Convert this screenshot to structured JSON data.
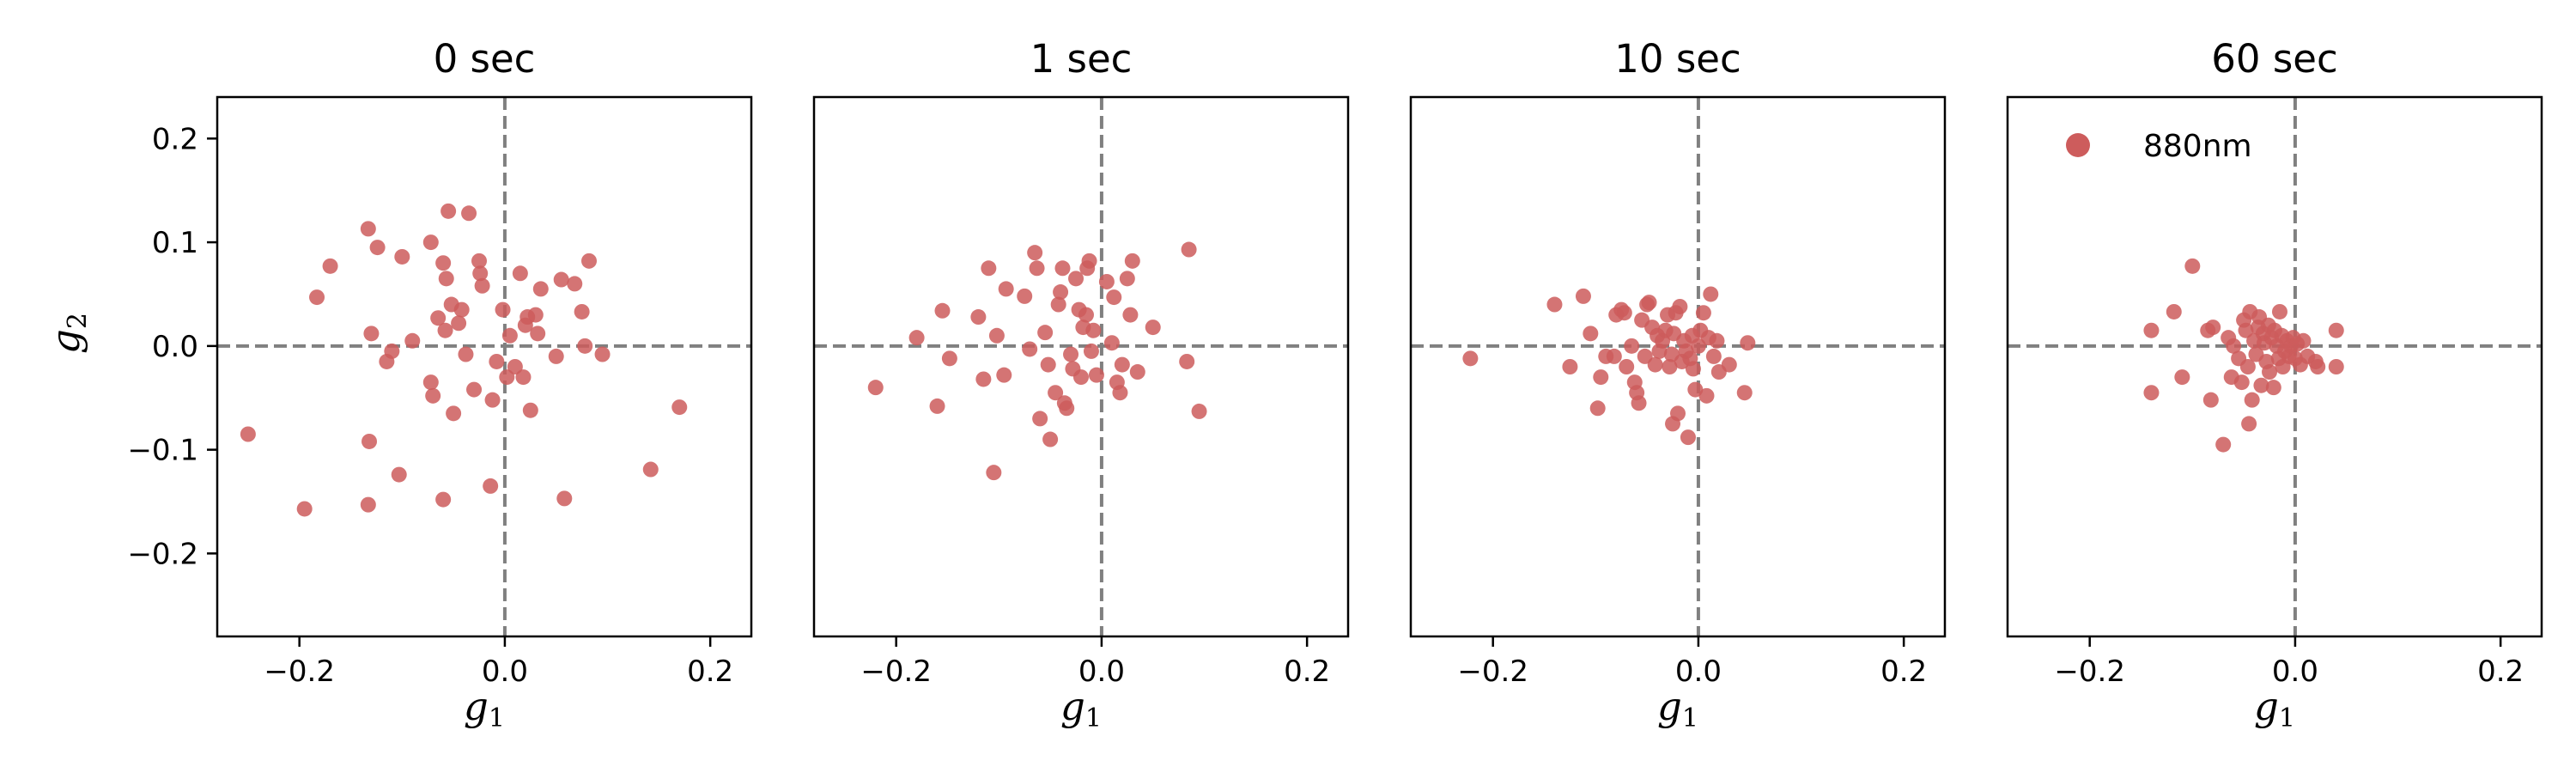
{
  "chart_data": {
    "type": "scatter",
    "xlim": [
      -0.28,
      0.24
    ],
    "ylim": [
      -0.28,
      0.24
    ],
    "xticks": [
      -0.2,
      0.0,
      0.2
    ],
    "xtick_labels": [
      "−0.2",
      "0.0",
      "0.2"
    ],
    "yticks": [
      0.2,
      0.1,
      0.0,
      -0.1,
      -0.2
    ],
    "ytick_labels": [
      "0.2",
      "0.1",
      "0.0",
      "−0.1",
      "−0.2"
    ],
    "xlabel": "g",
    "xlabel_sub": "1",
    "ylabel": "g",
    "ylabel_sub": "2",
    "reference_lines": {
      "x": 0.0,
      "y": 0.0,
      "style": "dashed",
      "color": "#808080"
    },
    "marker_color": "#cd5c5c",
    "grid": false,
    "legend": {
      "label": "880nm",
      "panel_index": 3,
      "placement": "top-left"
    },
    "panels": [
      {
        "title": "0 sec",
        "points": [
          [
            -0.25,
            -0.085
          ],
          [
            -0.195,
            -0.157
          ],
          [
            -0.183,
            0.047
          ],
          [
            -0.17,
            0.077
          ],
          [
            -0.133,
            0.113
          ],
          [
            -0.132,
            -0.092
          ],
          [
            -0.133,
            -0.153
          ],
          [
            -0.13,
            0.012
          ],
          [
            -0.124,
            0.095
          ],
          [
            -0.115,
            -0.015
          ],
          [
            -0.11,
            -0.005
          ],
          [
            -0.103,
            -0.124
          ],
          [
            -0.1,
            0.086
          ],
          [
            -0.09,
            0.005
          ],
          [
            -0.072,
            0.1
          ],
          [
            -0.072,
            -0.035
          ],
          [
            -0.07,
            -0.048
          ],
          [
            -0.065,
            0.027
          ],
          [
            -0.06,
            -0.148
          ],
          [
            -0.06,
            0.08
          ],
          [
            -0.058,
            0.015
          ],
          [
            -0.057,
            0.065
          ],
          [
            -0.055,
            0.13
          ],
          [
            -0.052,
            0.04
          ],
          [
            -0.05,
            -0.065
          ],
          [
            -0.045,
            0.022
          ],
          [
            -0.042,
            0.035
          ],
          [
            -0.038,
            -0.008
          ],
          [
            -0.035,
            0.128
          ],
          [
            -0.03,
            -0.042
          ],
          [
            -0.025,
            0.082
          ],
          [
            -0.024,
            0.07
          ],
          [
            -0.022,
            0.058
          ],
          [
            -0.014,
            -0.135
          ],
          [
            -0.012,
            -0.052
          ],
          [
            -0.008,
            -0.015
          ],
          [
            -0.002,
            0.035
          ],
          [
            0.002,
            -0.03
          ],
          [
            0.005,
            0.01
          ],
          [
            0.01,
            -0.02
          ],
          [
            0.015,
            0.07
          ],
          [
            0.018,
            -0.03
          ],
          [
            0.02,
            0.02
          ],
          [
            0.022,
            0.028
          ],
          [
            0.025,
            -0.062
          ],
          [
            0.03,
            0.03
          ],
          [
            0.032,
            0.012
          ],
          [
            0.035,
            0.055
          ],
          [
            0.05,
            -0.01
          ],
          [
            0.055,
            0.064
          ],
          [
            0.058,
            -0.147
          ],
          [
            0.068,
            0.06
          ],
          [
            0.075,
            0.033
          ],
          [
            0.078,
            0.0
          ],
          [
            0.082,
            0.082
          ],
          [
            0.095,
            -0.008
          ],
          [
            0.142,
            -0.119
          ],
          [
            0.17,
            -0.059
          ]
        ]
      },
      {
        "title": "1 sec",
        "points": [
          [
            -0.22,
            -0.04
          ],
          [
            -0.18,
            0.008
          ],
          [
            -0.16,
            -0.058
          ],
          [
            -0.155,
            0.034
          ],
          [
            -0.148,
            -0.012
          ],
          [
            -0.12,
            0.028
          ],
          [
            -0.115,
            -0.032
          ],
          [
            -0.11,
            0.075
          ],
          [
            -0.105,
            -0.122
          ],
          [
            -0.102,
            0.01
          ],
          [
            -0.095,
            -0.028
          ],
          [
            -0.093,
            0.055
          ],
          [
            -0.075,
            0.048
          ],
          [
            -0.07,
            -0.003
          ],
          [
            -0.065,
            0.09
          ],
          [
            -0.063,
            0.075
          ],
          [
            -0.06,
            -0.07
          ],
          [
            -0.055,
            0.013
          ],
          [
            -0.052,
            -0.018
          ],
          [
            -0.05,
            -0.09
          ],
          [
            -0.045,
            -0.045
          ],
          [
            -0.042,
            0.04
          ],
          [
            -0.04,
            0.052
          ],
          [
            -0.038,
            0.075
          ],
          [
            -0.036,
            -0.055
          ],
          [
            -0.034,
            -0.06
          ],
          [
            -0.03,
            -0.008
          ],
          [
            -0.028,
            -0.022
          ],
          [
            -0.025,
            0.065
          ],
          [
            -0.022,
            0.035
          ],
          [
            -0.02,
            -0.03
          ],
          [
            -0.018,
            0.018
          ],
          [
            -0.015,
            0.03
          ],
          [
            -0.014,
            0.075
          ],
          [
            -0.012,
            0.082
          ],
          [
            -0.01,
            -0.005
          ],
          [
            -0.008,
            0.015
          ],
          [
            -0.005,
            -0.028
          ],
          [
            0.005,
            0.062
          ],
          [
            0.01,
            0.003
          ],
          [
            0.012,
            0.047
          ],
          [
            0.015,
            -0.035
          ],
          [
            0.018,
            -0.045
          ],
          [
            0.02,
            -0.018
          ],
          [
            0.025,
            0.065
          ],
          [
            0.028,
            0.03
          ],
          [
            0.03,
            0.082
          ],
          [
            0.035,
            -0.025
          ],
          [
            0.05,
            0.018
          ],
          [
            0.083,
            -0.015
          ],
          [
            0.085,
            0.093
          ],
          [
            0.095,
            -0.063
          ]
        ]
      },
      {
        "title": "10 sec",
        "points": [
          [
            -0.222,
            -0.012
          ],
          [
            -0.14,
            0.04
          ],
          [
            -0.125,
            -0.02
          ],
          [
            -0.112,
            0.048
          ],
          [
            -0.105,
            0.012
          ],
          [
            -0.098,
            -0.06
          ],
          [
            -0.095,
            -0.03
          ],
          [
            -0.09,
            -0.01
          ],
          [
            -0.082,
            -0.01
          ],
          [
            -0.08,
            0.03
          ],
          [
            -0.075,
            0.035
          ],
          [
            -0.072,
            0.032
          ],
          [
            -0.07,
            -0.02
          ],
          [
            -0.065,
            0.0
          ],
          [
            -0.062,
            -0.035
          ],
          [
            -0.06,
            -0.045
          ],
          [
            -0.058,
            -0.055
          ],
          [
            -0.055,
            0.025
          ],
          [
            -0.052,
            -0.01
          ],
          [
            -0.05,
            0.04
          ],
          [
            -0.048,
            0.042
          ],
          [
            -0.045,
            0.018
          ],
          [
            -0.042,
            -0.018
          ],
          [
            -0.04,
            0.01
          ],
          [
            -0.038,
            -0.005
          ],
          [
            -0.035,
            0.005
          ],
          [
            -0.032,
            0.015
          ],
          [
            -0.03,
            0.03
          ],
          [
            -0.028,
            -0.02
          ],
          [
            -0.026,
            -0.008
          ],
          [
            -0.025,
            -0.075
          ],
          [
            -0.024,
            0.012
          ],
          [
            -0.022,
            0.032
          ],
          [
            -0.02,
            -0.065
          ],
          [
            -0.018,
            0.038
          ],
          [
            -0.016,
            -0.015
          ],
          [
            -0.014,
            0.005
          ],
          [
            -0.012,
            -0.005
          ],
          [
            -0.01,
            -0.088
          ],
          [
            -0.008,
            -0.012
          ],
          [
            -0.006,
            0.01
          ],
          [
            -0.005,
            -0.022
          ],
          [
            -0.003,
            -0.042
          ],
          [
            0.0,
            0.0
          ],
          [
            0.002,
            0.015
          ],
          [
            0.005,
            0.032
          ],
          [
            0.008,
            -0.048
          ],
          [
            0.01,
            0.008
          ],
          [
            0.012,
            0.05
          ],
          [
            0.015,
            -0.01
          ],
          [
            0.018,
            0.005
          ],
          [
            0.02,
            -0.025
          ],
          [
            0.03,
            -0.018
          ],
          [
            0.045,
            -0.045
          ],
          [
            0.048,
            0.003
          ]
        ]
      },
      {
        "title": "60 sec",
        "points": [
          [
            -0.14,
            -0.045
          ],
          [
            -0.14,
            0.015
          ],
          [
            -0.118,
            0.033
          ],
          [
            -0.11,
            -0.03
          ],
          [
            -0.1,
            0.077
          ],
          [
            -0.085,
            0.015
          ],
          [
            -0.082,
            -0.052
          ],
          [
            -0.08,
            0.018
          ],
          [
            -0.07,
            -0.095
          ],
          [
            -0.065,
            0.008
          ],
          [
            -0.062,
            -0.03
          ],
          [
            -0.06,
            0.0
          ],
          [
            -0.055,
            -0.012
          ],
          [
            -0.052,
            -0.035
          ],
          [
            -0.05,
            0.025
          ],
          [
            -0.048,
            0.015
          ],
          [
            -0.046,
            -0.02
          ],
          [
            -0.045,
            -0.075
          ],
          [
            -0.044,
            0.033
          ],
          [
            -0.042,
            -0.052
          ],
          [
            -0.04,
            0.005
          ],
          [
            -0.038,
            -0.008
          ],
          [
            -0.036,
            0.018
          ],
          [
            -0.035,
            0.028
          ],
          [
            -0.033,
            -0.038
          ],
          [
            -0.031,
            0.012
          ],
          [
            -0.03,
            0.003
          ],
          [
            -0.028,
            -0.015
          ],
          [
            -0.026,
            0.02
          ],
          [
            -0.025,
            -0.025
          ],
          [
            -0.023,
            0.008
          ],
          [
            -0.021,
            -0.04
          ],
          [
            -0.02,
            0.015
          ],
          [
            -0.018,
            0.0
          ],
          [
            -0.016,
            -0.012
          ],
          [
            -0.015,
            0.033
          ],
          [
            -0.013,
            0.01
          ],
          [
            -0.012,
            -0.02
          ],
          [
            -0.01,
            -0.005
          ],
          [
            -0.008,
            0.005
          ],
          [
            -0.006,
            -0.01
          ],
          [
            -0.004,
            0.0
          ],
          [
            -0.002,
            0.008
          ],
          [
            0.0,
            -0.012
          ],
          [
            0.002,
            0.002
          ],
          [
            0.005,
            -0.018
          ],
          [
            0.008,
            0.005
          ],
          [
            0.012,
            -0.01
          ],
          [
            0.02,
            -0.015
          ],
          [
            0.022,
            -0.02
          ],
          [
            0.04,
            0.015
          ],
          [
            0.04,
            -0.02
          ]
        ]
      }
    ]
  }
}
